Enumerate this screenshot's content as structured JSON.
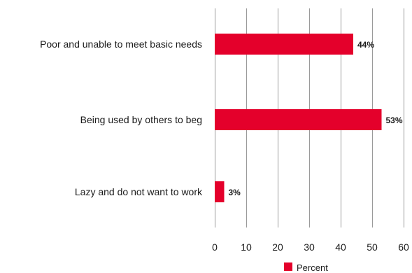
{
  "chart_data": {
    "type": "bar",
    "orientation": "horizontal",
    "categories": [
      "Poor and unable to meet basic needs",
      "Being used by others to beg",
      "Lazy and do not want to work"
    ],
    "series": [
      {
        "name": "Percent",
        "values": [
          44,
          53,
          3
        ],
        "data_labels": [
          "44%",
          "53%",
          "3%"
        ],
        "color": "#e4002b"
      }
    ],
    "title": "",
    "xlabel": "",
    "ylabel": "",
    "xlim": [
      0,
      60
    ],
    "x_ticks": [
      0,
      10,
      20,
      30,
      40,
      50,
      60
    ],
    "x_tick_labels": [
      "0",
      "10",
      "20",
      "30",
      "40",
      "50",
      "60"
    ],
    "grid": "vertical",
    "legend": {
      "position": "bottom",
      "entries": [
        "Percent"
      ]
    }
  }
}
